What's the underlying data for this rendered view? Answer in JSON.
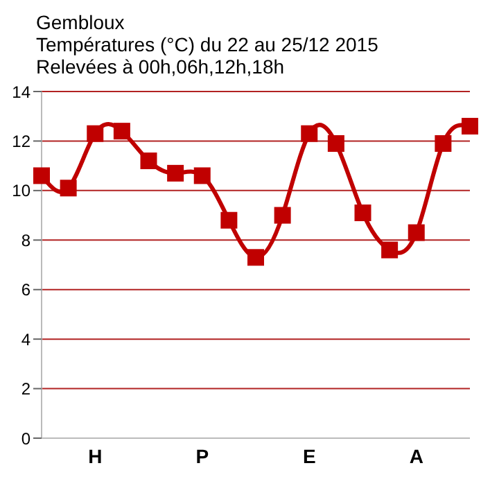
{
  "chart_data": {
    "type": "line",
    "title": "Gembloux",
    "subtitle": "Températures (°C) du 22 au 25/12 2015\nRelevées à 00h,06h,12h,18h",
    "categories": [
      null,
      null,
      "H",
      null,
      null,
      null,
      "P",
      null,
      null,
      null,
      "E",
      null,
      null,
      null,
      "A",
      null,
      null
    ],
    "series": [
      {
        "color": "#c00000",
        "values": [
          10.6,
          10.1,
          12.3,
          12.4,
          11.2,
          10.7,
          10.6,
          8.8,
          7.3,
          9.0,
          12.3,
          11.9,
          9.1,
          7.6,
          8.3,
          11.9,
          12.6
        ]
      }
    ],
    "ylim": [
      0,
      14
    ],
    "yticks": [
      0,
      2,
      4,
      6,
      8,
      10,
      12,
      14
    ],
    "grid": "y",
    "marker": "square",
    "legend": false
  }
}
